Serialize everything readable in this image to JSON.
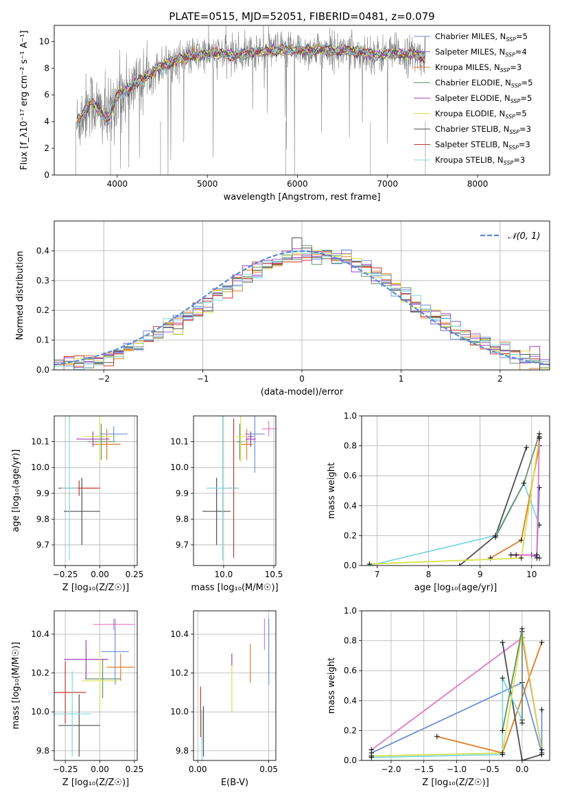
{
  "figure": {
    "title": "PLATE=0515, MJD=52051, FIBERID=0481, z=0.079"
  },
  "colors": {
    "Chabrier MILES": "#6a8fd8",
    "Salpeter MILES": "#8f5bbf",
    "Kroupa MILES": "#e07b27",
    "Chabrier ELODIE": "#6b8f6b",
    "Salpeter ELODIE": "#9b3fb5",
    "Kroupa ELODIE": "#d6e04a",
    "Chabrier STELIB": "#4d4d4d",
    "Salpeter STELIB": "#c0392b",
    "Kroupa STELIB": "#7fd6e0",
    "data": "#808080",
    "normal": "#5b8bd6"
  },
  "chart_data": [
    {
      "id": "spectrum",
      "type": "line",
      "title": "PLATE=0515, MJD=52051, FIBERID=0481, z=0.079",
      "xlabel": "wavelength [Angstrom, rest frame]",
      "ylabel": "Flux [f_λ10⁻¹⁷ erg cm⁻² s⁻¹ A⁻¹]",
      "xlim": [
        3300,
        8800
      ],
      "ylim": [
        0,
        11.2
      ],
      "xticks": [
        4000,
        5000,
        6000,
        7000,
        8000
      ],
      "yticks": [
        0,
        2,
        4,
        6,
        8,
        10
      ],
      "grid": false,
      "legend_position": "right",
      "legend": [
        "Chabrier MILES, N_SSP=5",
        "Salpeter MILES, N_SSP=4",
        "Kroupa MILES, N_SSP=3",
        "Chabrier ELODIE, N_SSP=5",
        "Salpeter ELODIE, N_SSP=5",
        "Kroupa ELODIE, N_SSP=5",
        "Chabrier STELIB, N_SSP=3",
        "Salpeter STELIB, N_SSP=3",
        "Kroupa STELIB, N_SSP=3"
      ],
      "continuum_x": [
        3550,
        3700,
        3800,
        3900,
        4000,
        4100,
        4200,
        4300,
        4500,
        4700,
        4900,
        5100,
        5300,
        5500,
        5700,
        5900,
        6100,
        6300,
        6500,
        6700,
        6900,
        7100,
        7300,
        7400
      ],
      "continuum_y": [
        3.8,
        5.5,
        4.8,
        4.2,
        6.0,
        6.3,
        6.8,
        7.3,
        8.2,
        8.7,
        9.0,
        9.1,
        9.0,
        9.2,
        9.3,
        9.4,
        9.3,
        9.4,
        9.3,
        9.2,
        9.0,
        9.1,
        9.0,
        8.9
      ]
    },
    {
      "id": "residuals",
      "type": "histogram",
      "xlabel": "(data-model)/error",
      "ylabel": "Normed distribution",
      "xlim": [
        -2.5,
        2.5
      ],
      "ylim": [
        0,
        0.5
      ],
      "xticks": [
        -2,
        -1,
        0,
        1,
        2
      ],
      "yticks": [
        0.0,
        0.1,
        0.2,
        0.3,
        0.4
      ],
      "grid": true,
      "legend": [
        "𝒩(0, 1)"
      ],
      "bin_width": 0.1
    },
    {
      "id": "age_vs_Z",
      "type": "scatter",
      "xlabel": "Z [log₁₀(Z/Z☉)]",
      "ylabel": "age  [log₁₀(age/yr)]",
      "xlim": [
        -0.33,
        0.27
      ],
      "ylim": [
        9.62,
        10.2
      ],
      "xticks": [
        -0.25,
        0.0,
        0.25
      ],
      "yticks": [
        9.7,
        9.8,
        9.9,
        10.0,
        10.1
      ],
      "grid": true,
      "points": [
        {
          "model": "Chabrier MILES",
          "x": 0.1,
          "y": 10.13,
          "xerr": 0.1,
          "yerr": 0.03
        },
        {
          "model": "Salpeter MILES",
          "x": 0.0,
          "y": 10.12,
          "xerr": 0.03,
          "yerr": 0.02
        },
        {
          "model": "Kroupa MILES",
          "x": 0.05,
          "y": 10.09,
          "xerr": 0.1,
          "yerr": 0.06
        },
        {
          "model": "Chabrier ELODIE",
          "x": 0.01,
          "y": 10.1,
          "xerr": 0.1,
          "yerr": 0.07
        },
        {
          "model": "Salpeter ELODIE",
          "x": -0.05,
          "y": 10.11,
          "xerr": 0.12,
          "yerr": 0.03
        },
        {
          "model": "Kroupa ELODIE",
          "x": 0.0,
          "y": 10.12,
          "xerr": 0.12,
          "yerr": 0.1
        },
        {
          "model": "Chabrier STELIB",
          "x": -0.13,
          "y": 9.83,
          "xerr": 0.13,
          "yerr": 0.13
        },
        {
          "model": "Salpeter STELIB",
          "x": -0.15,
          "y": 9.92,
          "xerr": 0.15,
          "yerr": 0.03
        },
        {
          "model": "Kroupa STELIB",
          "x": -0.22,
          "y": 9.92,
          "xerr": 0.06,
          "yerr": 0.28
        }
      ]
    },
    {
      "id": "age_vs_mass",
      "type": "scatter",
      "xlabel": "mass [log₁₀(M/M☉)]",
      "ylabel": "",
      "xlim": [
        9.7,
        10.52
      ],
      "ylim": [
        9.62,
        10.2
      ],
      "xticks": [
        10.0,
        10.5
      ],
      "yticks": [
        9.7,
        9.8,
        9.9,
        10.0,
        10.1
      ],
      "grid": true,
      "points": [
        {
          "model": "Chabrier MILES",
          "x": 10.31,
          "y": 10.13,
          "xerr": 0.1,
          "yerr": 0.15
        },
        {
          "model": "Salpeter MILES",
          "x": 10.27,
          "y": 10.12,
          "xerr": 0.03,
          "yerr": 0.02
        },
        {
          "model": "Kroupa MILES",
          "x": 10.23,
          "y": 10.09,
          "xerr": 0.06,
          "yerr": 0.06
        },
        {
          "model": "Chabrier ELODIE",
          "x": 10.16,
          "y": 10.1,
          "xerr": 0.03,
          "yerr": 0.07
        },
        {
          "model": "Salpeter ELODIE",
          "x": 10.27,
          "y": 10.11,
          "xerr": 0.05,
          "yerr": 0.03
        },
        {
          "model": "Kroupa ELODIE",
          "x": 10.17,
          "y": 10.12,
          "xerr": 0.05,
          "yerr": 0.1
        },
        {
          "model": "Chabrier STELIB",
          "x": 9.93,
          "y": 9.83,
          "xerr": 0.14,
          "yerr": 0.13
        },
        {
          "model": "Salpeter STELIB",
          "x": 10.1,
          "y": 9.92,
          "xerr": 0.05,
          "yerr": 0.27
        },
        {
          "model": "Kroupa STELIB",
          "x": 9.99,
          "y": 9.92,
          "xerr": 0.16,
          "yerr": 0.28
        },
        {
          "model": "Pink",
          "x": 10.45,
          "y": 10.15,
          "xerr": 0.07,
          "yerr": 0.03
        }
      ]
    },
    {
      "id": "weight_vs_age",
      "type": "line",
      "xlabel": "age  [log₁₀(age/yr)]",
      "ylabel": "mass weight",
      "xlim": [
        6.7,
        10.35
      ],
      "ylim": [
        0,
        1.0
      ],
      "xticks": [
        7,
        8,
        9,
        10
      ],
      "yticks": [
        0.0,
        0.2,
        0.4,
        0.6,
        0.8,
        1.0
      ],
      "grid": true
    },
    {
      "id": "mass_vs_Z",
      "type": "scatter",
      "xlabel": "Z [log₁₀(Z/Z☉)]",
      "ylabel": "mass [log₁₀(M/M☉)]",
      "xlim": [
        -0.33,
        0.27
      ],
      "ylim": [
        9.75,
        10.52
      ],
      "xticks": [
        -0.25,
        0.0,
        0.25
      ],
      "yticks": [
        9.8,
        10.0,
        10.2,
        10.4
      ],
      "grid": true
    },
    {
      "id": "mass_vs_EBV",
      "type": "scatter",
      "xlabel": "E(B-V)",
      "ylabel": "",
      "xlim": [
        -0.003,
        0.055
      ],
      "ylim": [
        9.75,
        10.52
      ],
      "xticks": [
        0.0,
        0.05
      ],
      "yticks": [
        9.8,
        10.0,
        10.2,
        10.4
      ],
      "grid": true
    },
    {
      "id": "weight_vs_Z",
      "type": "line",
      "xlabel": "Z [log₁₀(Z/Z☉)]",
      "ylabel": "mass weight",
      "xlim": [
        -2.45,
        0.42
      ],
      "ylim": [
        0,
        1.0
      ],
      "xticks": [
        -2.0,
        -1.5,
        -1.0,
        -0.5,
        0.0
      ],
      "yticks": [
        0.0,
        0.2,
        0.4,
        0.6,
        0.8,
        1.0
      ],
      "grid": true
    }
  ]
}
